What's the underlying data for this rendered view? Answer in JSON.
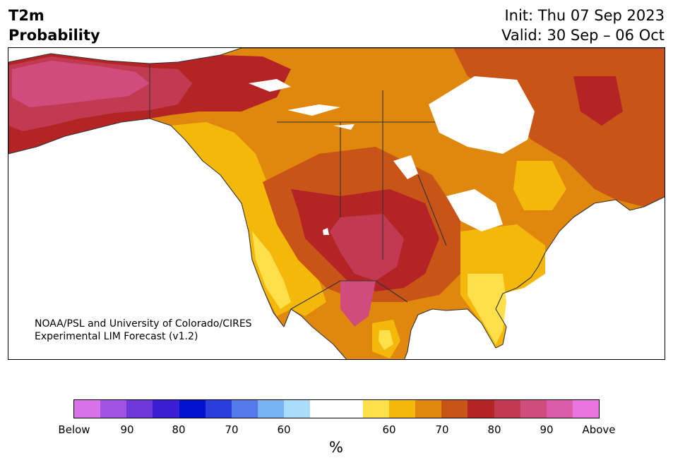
{
  "header": {
    "variable": "T2m",
    "quantity": "Probability",
    "init": "Init: Thu 07 Sep 2023",
    "valid": "Valid: 30 Sep – 06 Oct"
  },
  "credit": {
    "line1": "NOAA/PSL and University of Colorado/CIRES",
    "line2": "Experimental LIM Forecast (v1.2)"
  },
  "colorbar": {
    "unit": "%",
    "colors": [
      "#d673e8",
      "#a053e0",
      "#6e38d8",
      "#3b1ed4",
      "#0010cc",
      "#2a3ede",
      "#5578ea",
      "#78b4f4",
      "#acdcfc",
      "#ffffff",
      "#ffffff",
      "#ffe04a",
      "#f4b80a",
      "#e0880e",
      "#c85418",
      "#b42424",
      "#c23a52",
      "#d04c7c",
      "#dc5cac",
      "#ea74e0"
    ],
    "labels": [
      "Below",
      "90",
      "80",
      "70",
      "60",
      "60",
      "70",
      "80",
      "90",
      "Above"
    ]
  },
  "map": {
    "colors": {
      "land": "#e0880e",
      "yellow_light": "#ffe04a",
      "yellow": "#f4b80a",
      "orange": "#e0880e",
      "dark_orange": "#c85418",
      "red": "#b42424",
      "rose": "#c23a52",
      "pink": "#d04c7c",
      "ocean": "#ffffff",
      "lakes": "#ffffff",
      "border": "#333333"
    }
  }
}
